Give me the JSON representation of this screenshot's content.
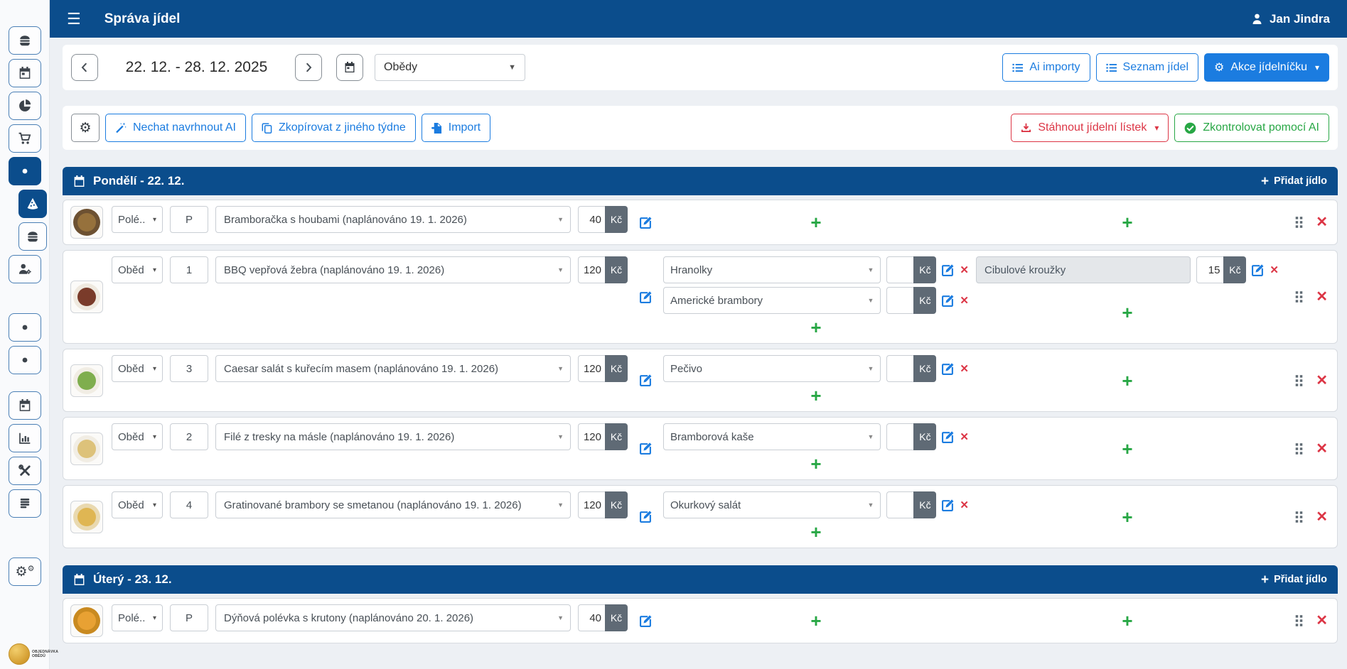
{
  "colors": {
    "navy": "#0b4d8c",
    "primary": "#1b7ce0",
    "danger": "#dc3545",
    "success": "#28a745",
    "addon_bg": "#5f6a75"
  },
  "navbar": {
    "title": "Správa jídel",
    "user": "Jan Jindra"
  },
  "sidebar": {
    "items": [
      {
        "icon": "burger-icon"
      },
      {
        "icon": "calendar-icon"
      },
      {
        "icon": "pie-chart-icon"
      },
      {
        "icon": "cart-icon"
      },
      {
        "icon": "dot-icon",
        "active": true
      },
      {
        "icon": "pizza-icon",
        "active": true,
        "indent": true
      },
      {
        "icon": "burger-icon",
        "indent": true
      },
      {
        "icon": "person-gear-icon"
      },
      {
        "icon": "dot-icon",
        "gap": "gap"
      },
      {
        "icon": "dot-icon"
      },
      {
        "icon": "calendar-icon",
        "gap": "gap-sm"
      },
      {
        "icon": "bar-chart-icon"
      },
      {
        "icon": "tools-icon"
      },
      {
        "icon": "stacked-lines-icon"
      },
      {
        "icon": "gears-icon",
        "gap": "gap-lg"
      }
    ],
    "logo_line1": "OBJEDNÁVKA",
    "logo_line2": "OBĚDŮ"
  },
  "toolbar": {
    "date_range": "22. 12. - 28. 12. 2025",
    "meal_filter": "Obědy",
    "ai_imports": "Ai importy",
    "meal_list": "Seznam jídel",
    "menu_actions": "Akce jídelníčku"
  },
  "actions_bar": {
    "suggest_ai": "Nechat navrhnout AI",
    "copy_other_week": "Zkopírovat z jiného týdne",
    "import": "Import",
    "download_menu": "Stáhnout jídelní lístek",
    "check_ai": "Zkontrolovat pomocí AI"
  },
  "labels": {
    "currency": "Kč",
    "add_meal": "Přidat jídlo"
  },
  "days": [
    {
      "title": "Pondělí - 22. 12.",
      "rows": [
        {
          "meal_type": "Polé..",
          "order": "P",
          "food": "Bramboračka s houbami (naplánováno 19. 1. 2026)",
          "price": "40",
          "sides": [],
          "extra": null,
          "thumb": {
            "plate": "#6d5132",
            "food": "#96713c"
          }
        },
        {
          "meal_type": "Oběd",
          "order": "1",
          "food": "BBQ vepřová žebra (naplánováno 19. 1. 2026)",
          "price": "120",
          "sides": [
            {
              "name": "Hranolky",
              "price": ""
            },
            {
              "name": "Americké brambory",
              "price": ""
            }
          ],
          "extra": {
            "name": "Cibulové kroužky",
            "price": "15"
          },
          "thumb": {
            "plate": "#efe9df",
            "food": "#7a3b2a"
          }
        },
        {
          "meal_type": "Oběd",
          "order": "3",
          "food": "Caesar salát s kuřecím masem (naplánováno 19. 1. 2026)",
          "price": "120",
          "sides": [
            {
              "name": "Pečivo",
              "price": ""
            }
          ],
          "extra": null,
          "thumb": {
            "plate": "#f1ede4",
            "food": "#7fae4e"
          }
        },
        {
          "meal_type": "Oběd",
          "order": "2",
          "food": "Filé z tresky na másle (naplánováno 19. 1. 2026)",
          "price": "120",
          "sides": [
            {
              "name": "Bramborová kaše",
              "price": ""
            }
          ],
          "extra": null,
          "thumb": {
            "plate": "#f1ede4",
            "food": "#ddc27a"
          }
        },
        {
          "meal_type": "Oběd",
          "order": "4",
          "food": "Gratinované brambory se smetanou (naplánováno 19. 1. 2026)",
          "price": "120",
          "sides": [
            {
              "name": "Okurkový salát",
              "price": ""
            }
          ],
          "extra": null,
          "thumb": {
            "plate": "#e9d9b0",
            "food": "#dfb653"
          }
        }
      ]
    },
    {
      "title": "Úterý - 23. 12.",
      "rows": [
        {
          "meal_type": "Polé..",
          "order": "P",
          "food": "Dýňová polévka s krutony (naplánováno 20. 1. 2026)",
          "price": "40",
          "sides": [],
          "extra": null,
          "thumb": {
            "plate": "#c98a20",
            "food": "#e8a133"
          }
        }
      ]
    }
  ]
}
